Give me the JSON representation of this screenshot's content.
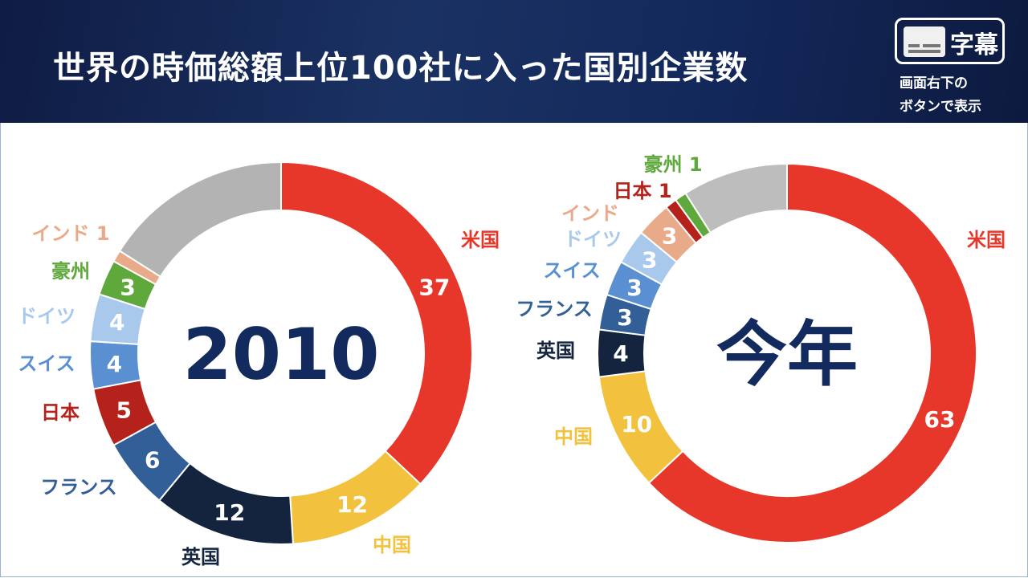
{
  "header": {
    "title": "世界の時価総額上位100社に入った国別企業数",
    "caption_button": {
      "icon": "subtitles-icon",
      "label": "字幕"
    },
    "caption_note_line1": "画面右下の",
    "caption_note_line2": "ボタンで表示"
  },
  "chart_data": [
    {
      "type": "pie",
      "variant": "donut",
      "center_label": "2010",
      "categories": [
        "米国",
        "中国",
        "英国",
        "フランス",
        "日本",
        "スイス",
        "ドイツ",
        "豪州",
        "インド",
        ""
      ],
      "values": [
        37,
        12,
        12,
        6,
        5,
        4,
        4,
        3,
        1,
        16
      ],
      "colors": [
        "#e6372a",
        "#f2c23e",
        "#14243f",
        "#335f98",
        "#b4221b",
        "#5a8fd2",
        "#a9c9ec",
        "#5ea83c",
        "#e9aa8a",
        "#b3b3b3"
      ]
    },
    {
      "type": "pie",
      "variant": "donut",
      "center_label": "今年",
      "categories": [
        "米国",
        "中国",
        "英国",
        "フランス",
        "スイス",
        "ドイツ",
        "インド",
        "日本",
        "豪州",
        ""
      ],
      "values": [
        63,
        10,
        4,
        3,
        3,
        3,
        3,
        1,
        1,
        9
      ],
      "colors": [
        "#e6372a",
        "#f2c23e",
        "#14243f",
        "#335f98",
        "#5a8fd2",
        "#a9c9ec",
        "#e9aa8a",
        "#b4221b",
        "#5ea83c",
        "#bdbdbd"
      ]
    }
  ]
}
